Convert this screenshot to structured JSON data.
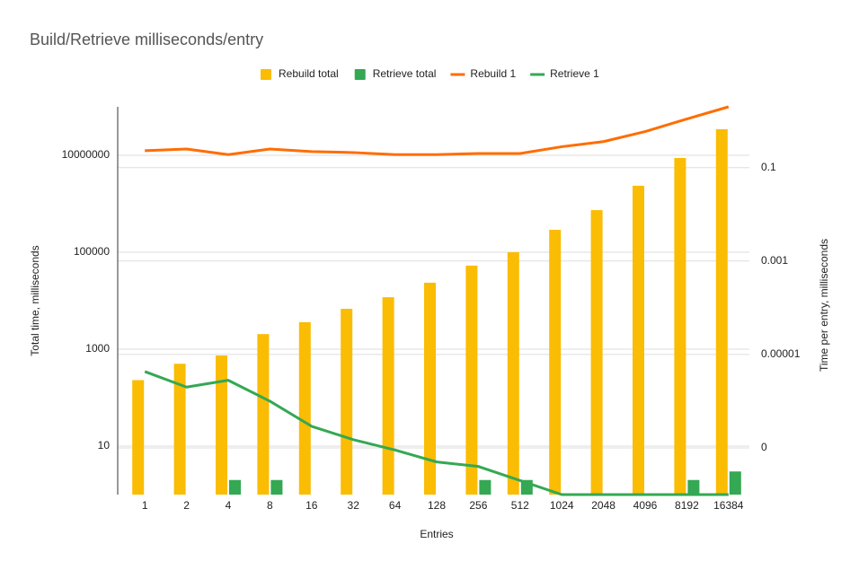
{
  "chart_data": {
    "type": "combo",
    "title": "Build/Retrieve milliseconds/entry",
    "x_label": "Entries",
    "y_label": "Total time, milliseconds",
    "y2_label": "Time per entry, milliseconds",
    "categories": [
      "1",
      "2",
      "4",
      "8",
      "16",
      "32",
      "64",
      "128",
      "256",
      "512",
      "1024",
      "2048",
      "4096",
      "8192",
      "16384"
    ],
    "log_scale": true,
    "grid": true,
    "legend": "top",
    "ylim": [
      1,
      100000000
    ],
    "yticks": [
      10,
      1000,
      100000,
      10000000
    ],
    "y2lim": [
      1e-08,
      2
    ],
    "y2ticks": [
      0.1,
      0.001,
      1e-05,
      {
        "value": 1e-07,
        "label": "0"
      }
    ],
    "series": [
      {
        "name": "Rebuild total",
        "type": "bar",
        "color": "#fbbc04",
        "values": [
          230,
          500,
          740,
          2050,
          3600,
          6800,
          11800,
          23500,
          53000,
          100000,
          290000,
          740000,
          2350000,
          8800000,
          34500000
        ]
      },
      {
        "name": "Retrieve total",
        "type": "bar",
        "color": "#34a853",
        "values": [
          1,
          1,
          2,
          2,
          1,
          1,
          1,
          1,
          2,
          2,
          1,
          1,
          1,
          2,
          3
        ]
      },
      {
        "name": "Rebuild 1",
        "type": "line",
        "axis": "y2",
        "color": "#ff6d01",
        "values": [
          0.23,
          0.25,
          0.19,
          0.25,
          0.22,
          0.21,
          0.19,
          0.19,
          0.2,
          0.2,
          0.28,
          0.36,
          0.59,
          1.1,
          2
        ]
      },
      {
        "name": "Retrieve 1",
        "type": "line",
        "axis": "y2",
        "color": "#34a853",
        "values": [
          4.3e-06,
          2e-06,
          2.8e-06,
          1e-06,
          2.9e-07,
          1.5e-07,
          9e-08,
          5e-08,
          4e-08,
          2e-08,
          1e-08,
          1e-08,
          1e-08,
          1e-08,
          1e-08
        ]
      }
    ]
  }
}
